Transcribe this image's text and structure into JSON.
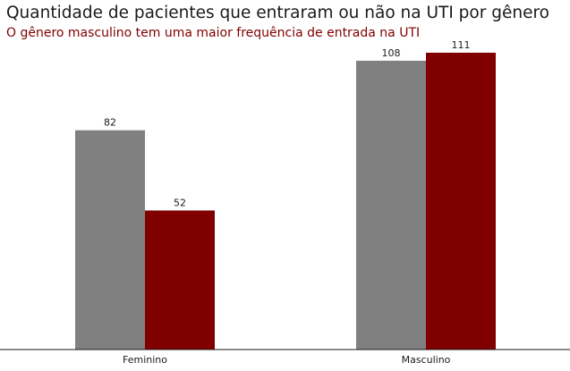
{
  "chart_data": {
    "type": "bar",
    "title": "Quantidade de pacientes que entraram ou não na UTI por gênero",
    "subtitle": "O gênero masculino tem uma maior frequência de entrada na UTI",
    "categories": [
      "Feminino",
      "Masculino"
    ],
    "series": [
      {
        "values": [
          82,
          108
        ],
        "color": "#808080"
      },
      {
        "values": [
          52,
          111
        ],
        "color": "#800000"
      }
    ],
    "xlabel": "",
    "ylabel": "",
    "ylim": [
      0,
      116
    ],
    "grid": false,
    "legend": "none",
    "data_labels": true,
    "y_axis_visible": false
  }
}
